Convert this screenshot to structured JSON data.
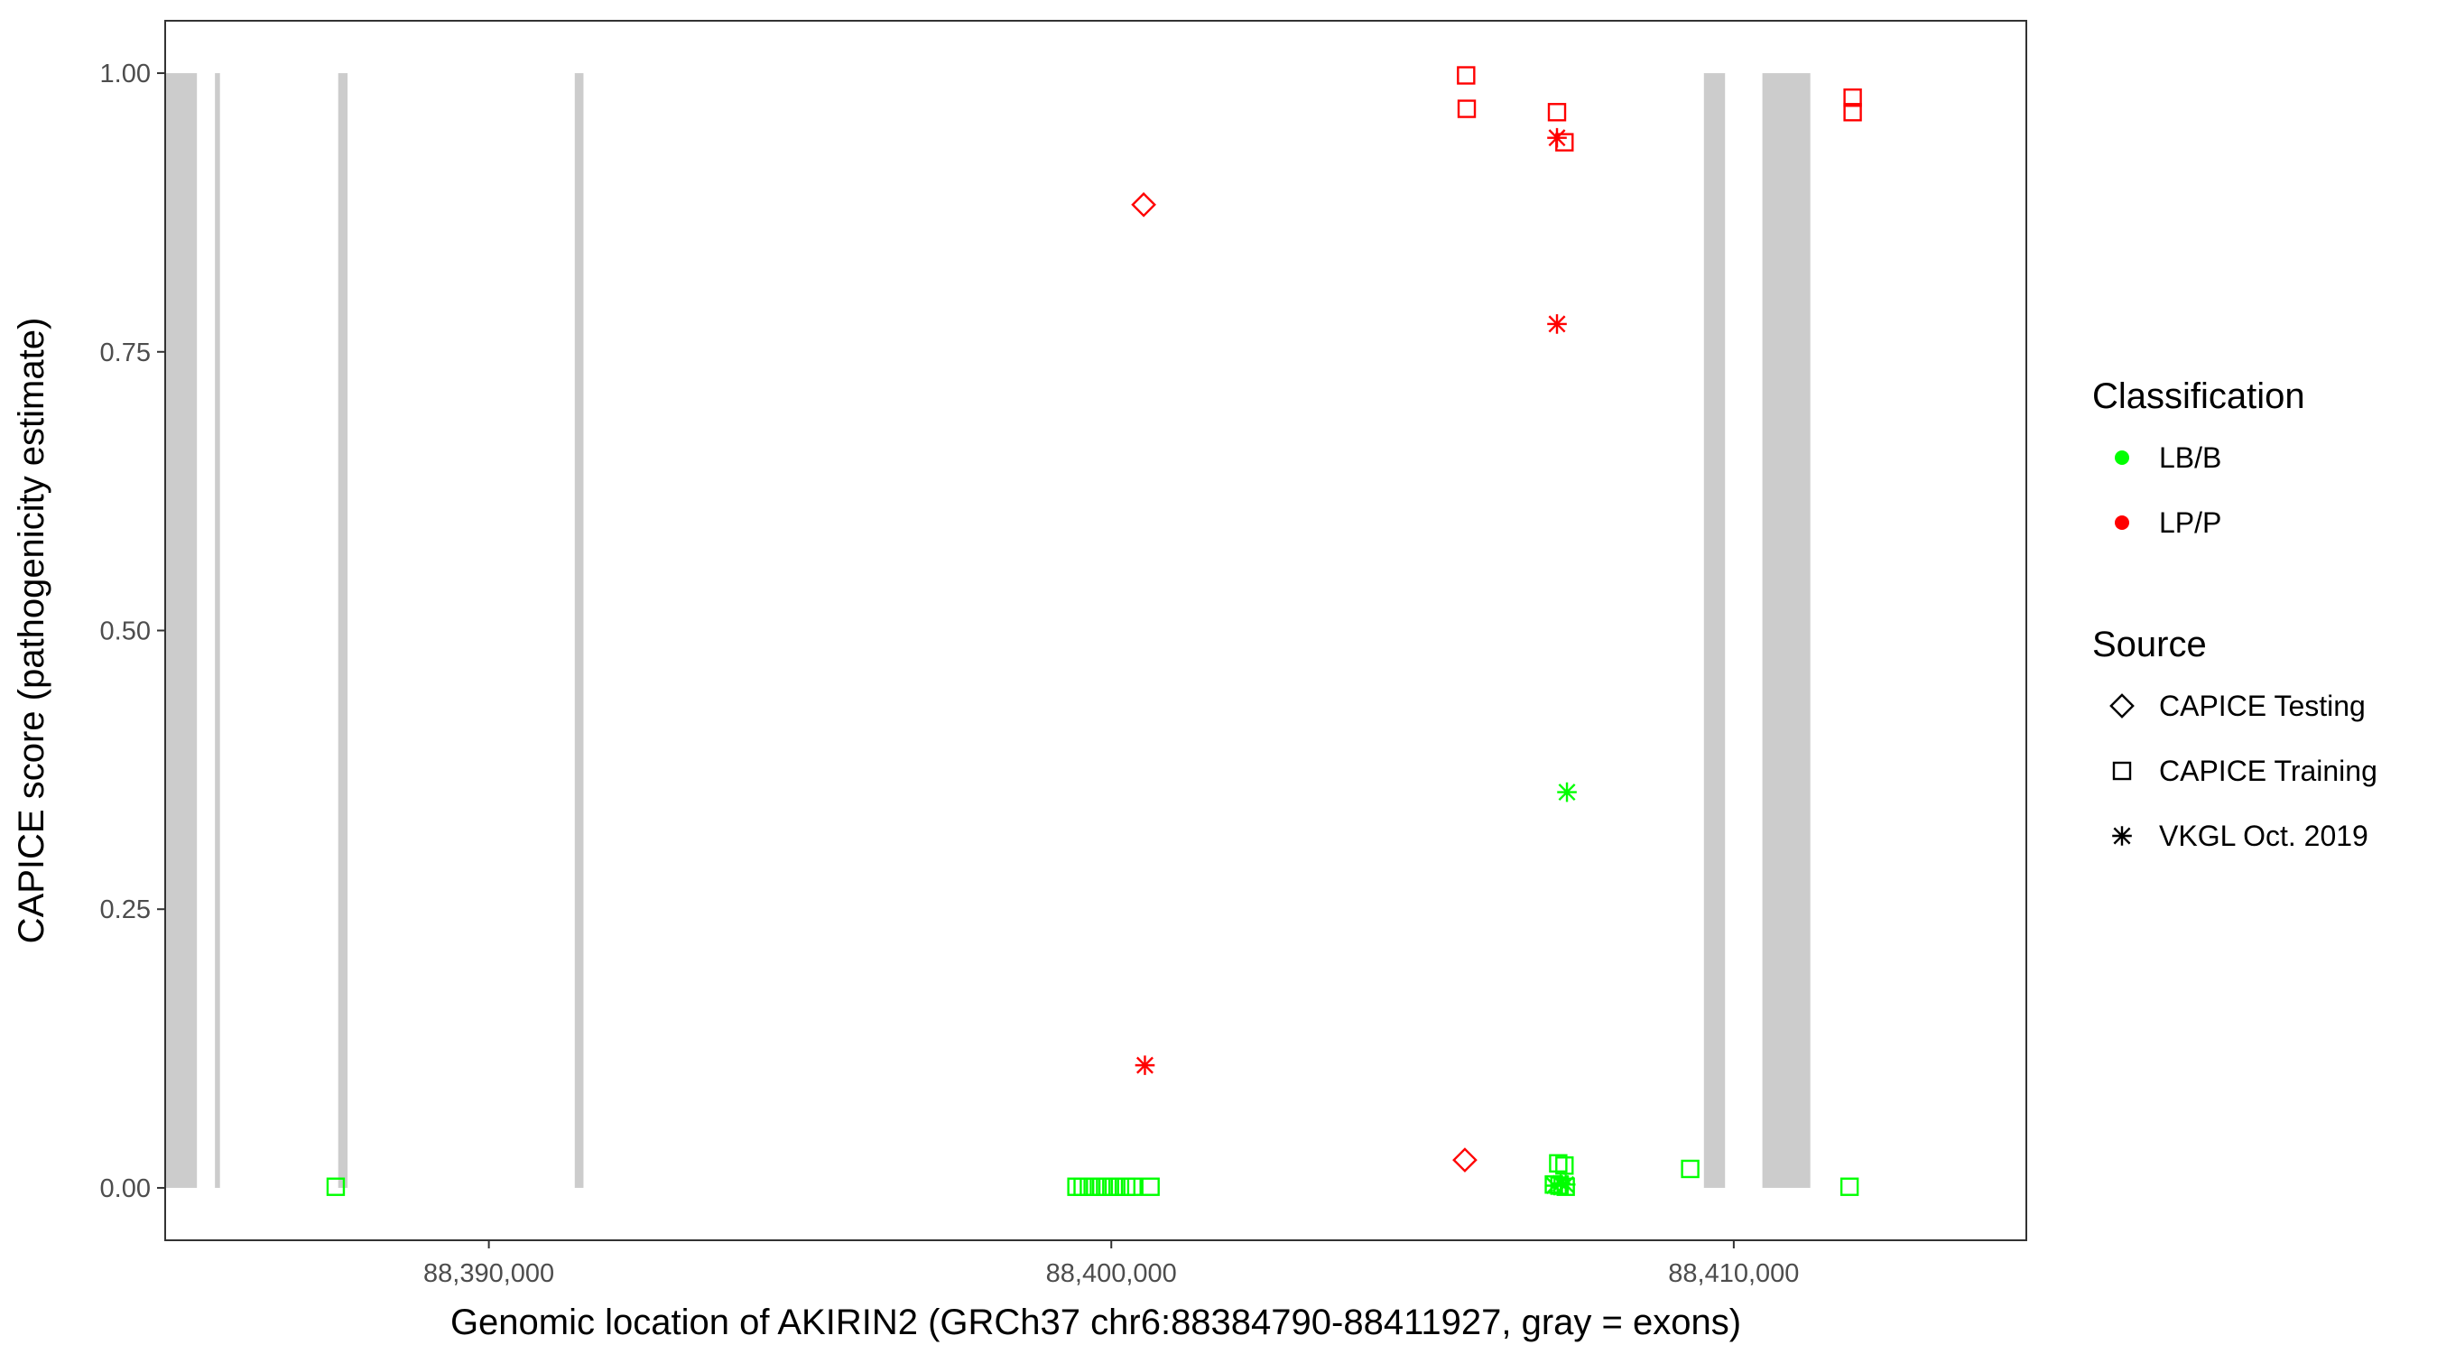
{
  "chart_data": {
    "type": "scatter",
    "title": "",
    "xlabel": "Genomic location of AKIRIN2 (GRCh37 chr6:88384790-88411927, gray = exons)",
    "ylabel": "CAPICE score (pathogenicity estimate)",
    "xlim": [
      84800,
      114700
    ],
    "ylim": [
      -0.047,
      1.047
    ],
    "x_ticks": [
      {
        "value": 90000,
        "label": "88,390,000"
      },
      {
        "value": 100000,
        "label": "88,400,000"
      },
      {
        "value": 110000,
        "label": "88,410,000"
      }
    ],
    "x_tick_base": 88300000,
    "y_ticks": [
      {
        "value": 0.0,
        "label": "0.00"
      },
      {
        "value": 0.25,
        "label": "0.25"
      },
      {
        "value": 0.5,
        "label": "0.50"
      },
      {
        "value": 0.75,
        "label": "0.75"
      },
      {
        "value": 1.0,
        "label": "1.00"
      }
    ],
    "grid": false,
    "exons": [
      {
        "start": 84790,
        "end": 85310
      },
      {
        "start": 85600,
        "end": 85680
      },
      {
        "start": 87580,
        "end": 87730
      },
      {
        "start": 91380,
        "end": 91520
      },
      {
        "start": 109520,
        "end": 109860
      },
      {
        "start": 110460,
        "end": 111230
      }
    ],
    "exon_color": "#cccccc",
    "classification_colors": {
      "LB/B": "#00ff00",
      "LP/P": "#ff0000"
    },
    "legend": {
      "placement": "right",
      "groups": [
        {
          "title": "Classification",
          "items": [
            {
              "label": "LB/B",
              "shape": "dot",
              "color": "#00ff00"
            },
            {
              "label": "LP/P",
              "shape": "dot",
              "color": "#ff0000"
            }
          ]
        },
        {
          "title": "Source",
          "items": [
            {
              "label": "CAPICE Testing",
              "shape": "diamond"
            },
            {
              "label": "CAPICE Training",
              "shape": "square"
            },
            {
              "label": "VKGL Oct. 2019",
              "shape": "star"
            }
          ]
        }
      ]
    },
    "series": [
      {
        "classification": "LP/P",
        "source": "CAPICE Testing",
        "points": [
          [
            100520,
            0.882
          ],
          [
            105680,
            0.025
          ]
        ]
      },
      {
        "classification": "LP/P",
        "source": "CAPICE Training",
        "points": [
          [
            105700,
            0.998
          ],
          [
            105710,
            0.968
          ],
          [
            107160,
            0.965
          ],
          [
            107280,
            0.938
          ],
          [
            111910,
            0.978
          ],
          [
            111910,
            0.965
          ]
        ]
      },
      {
        "classification": "LP/P",
        "source": "VKGL Oct. 2019",
        "points": [
          [
            107160,
            0.942
          ],
          [
            107160,
            0.775
          ],
          [
            100540,
            0.11
          ]
        ]
      },
      {
        "classification": "LB/B",
        "source": "CAPICE Training",
        "points": [
          [
            87540,
            0.001
          ],
          [
            99440,
            0.001
          ],
          [
            99540,
            0.001
          ],
          [
            99640,
            0.001
          ],
          [
            99740,
            0.001
          ],
          [
            99840,
            0.001
          ],
          [
            99940,
            0.001
          ],
          [
            100040,
            0.001
          ],
          [
            100140,
            0.001
          ],
          [
            100240,
            0.001
          ],
          [
            100340,
            0.001
          ],
          [
            100630,
            0.001
          ],
          [
            107180,
            0.022
          ],
          [
            107280,
            0.02
          ],
          [
            109300,
            0.017
          ],
          [
            111860,
            0.001
          ],
          [
            107110,
            0.003
          ],
          [
            107200,
            0.002
          ],
          [
            107300,
            0.001
          ]
        ]
      },
      {
        "classification": "LB/B",
        "source": "VKGL Oct. 2019",
        "points": [
          [
            107320,
            0.355
          ],
          [
            107120,
            0.002
          ],
          [
            107220,
            0.004
          ],
          [
            107300,
            0.003
          ]
        ]
      }
    ]
  }
}
